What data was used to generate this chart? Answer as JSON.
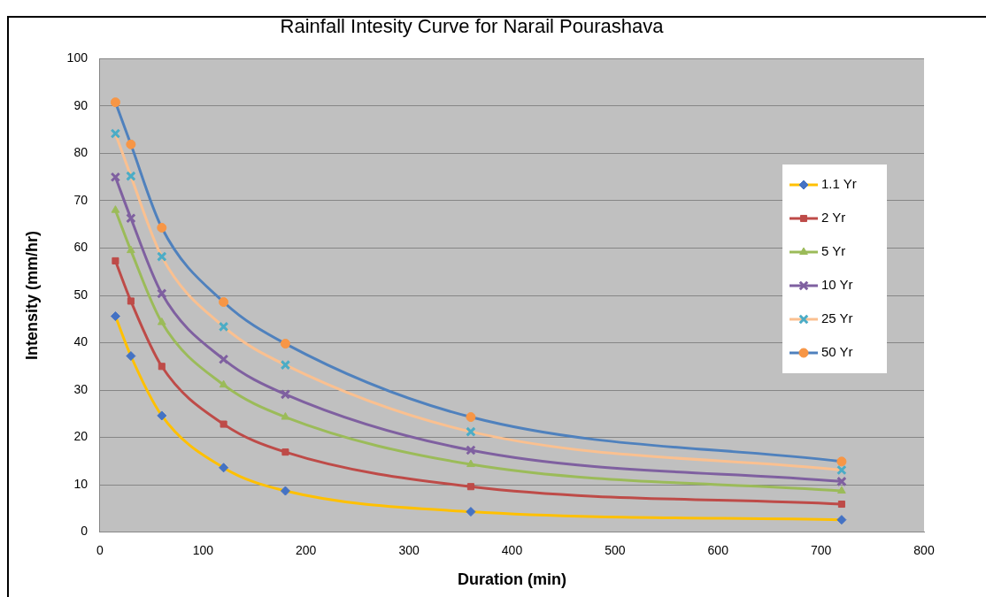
{
  "chart_data": {
    "type": "line",
    "title": "Rainfall Intesity Curve for Narail Pourashava",
    "xlabel": "Duration (min)",
    "ylabel": "Intensity (mm/hr)",
    "x": [
      15,
      30,
      60,
      120,
      180,
      360,
      720
    ],
    "series": [
      {
        "name": "1.1 Yr",
        "color": "#ffc000",
        "marker": "diamond",
        "colors": [
          "#4472c4",
          "#4472c4",
          "#4472c4",
          "#4472c4",
          "#4472c4",
          "#4472c4",
          "#4472c4"
        ],
        "values": [
          45.6,
          37.2,
          24.6,
          13.6,
          8.7,
          4.3,
          2.6
        ]
      },
      {
        "name": "2 Yr",
        "color": "#be4b48",
        "marker": "square",
        "values": [
          57.3,
          48.8,
          35,
          22.8,
          16.9,
          9.6,
          5.9
        ]
      },
      {
        "name": "5 Yr",
        "color": "#9bbb59",
        "marker": "triangle",
        "values": [
          68,
          59.5,
          44.3,
          31.1,
          24.3,
          14.3,
          8.7
        ]
      },
      {
        "name": "10 Yr",
        "color": "#7f60a0",
        "marker": "cross",
        "values": [
          75,
          66.3,
          50.4,
          36.5,
          29.1,
          17.3,
          10.7
        ]
      },
      {
        "name": "25 Yr",
        "color": "#fac090",
        "marker": "cross",
        "colors": [
          "#4bacc6",
          "#4bacc6",
          "#4bacc6",
          "#4bacc6",
          "#4bacc6",
          "#4bacc6",
          "#4bacc6"
        ],
        "values": [
          84.2,
          75.2,
          58.2,
          43.4,
          35.3,
          21.2,
          13.1
        ]
      },
      {
        "name": "50 Yr",
        "color": "#4f81bd",
        "marker": "circle",
        "colors": [
          "#f79646",
          "#f79646",
          "#f79646",
          "#f79646",
          "#f79646",
          "#f79646",
          "#f79646"
        ],
        "values": [
          90.8,
          81.9,
          64.3,
          48.6,
          39.8,
          24.3,
          14.9
        ]
      }
    ],
    "xlim": [
      0,
      800
    ],
    "xticks": [
      0,
      100,
      200,
      300,
      400,
      500,
      600,
      700,
      800
    ],
    "ylim": [
      0,
      100
    ],
    "yticks": [
      0,
      10,
      20,
      30,
      40,
      50,
      60,
      70,
      80,
      90,
      100
    ],
    "grid": "y",
    "legend": "right",
    "line_style": "solid"
  }
}
